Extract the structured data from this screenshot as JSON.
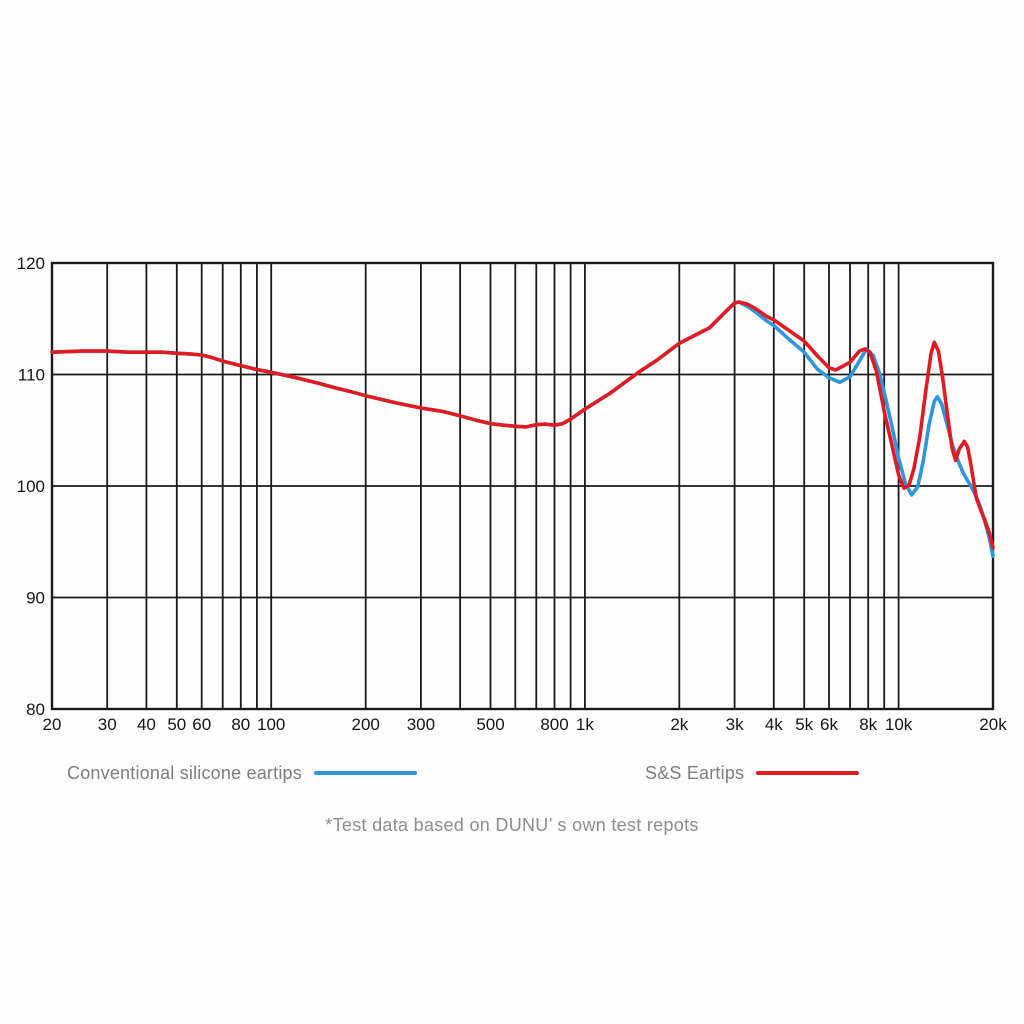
{
  "chart_data": {
    "type": "line",
    "title": "",
    "xlabel": "",
    "ylabel": "",
    "x_scale": "log",
    "xlim": [
      20,
      20000
    ],
    "ylim": [
      80,
      120
    ],
    "grid": true,
    "legend_position": "bottom",
    "y_ticks": [
      80,
      90,
      100,
      110,
      120
    ],
    "x_gridlines": [
      20,
      30,
      40,
      50,
      60,
      70,
      80,
      90,
      100,
      200,
      300,
      400,
      500,
      600,
      700,
      800,
      900,
      1000,
      2000,
      3000,
      4000,
      5000,
      6000,
      7000,
      8000,
      9000,
      10000,
      20000
    ],
    "x_tick_labels": [
      {
        "f": 20,
        "label": "20"
      },
      {
        "f": 30,
        "label": "30"
      },
      {
        "f": 40,
        "label": "40"
      },
      {
        "f": 50,
        "label": "50"
      },
      {
        "f": 60,
        "label": "60"
      },
      {
        "f": 80,
        "label": "80"
      },
      {
        "f": 100,
        "label": "100"
      },
      {
        "f": 200,
        "label": "200"
      },
      {
        "f": 300,
        "label": "300"
      },
      {
        "f": 500,
        "label": "500"
      },
      {
        "f": 800,
        "label": "800"
      },
      {
        "f": 1000,
        "label": "1k"
      },
      {
        "f": 2000,
        "label": "2k"
      },
      {
        "f": 3000,
        "label": "3k"
      },
      {
        "f": 4000,
        "label": "4k"
      },
      {
        "f": 5000,
        "label": "5k"
      },
      {
        "f": 6000,
        "label": "6k"
      },
      {
        "f": 8000,
        "label": "8k"
      },
      {
        "f": 10000,
        "label": "10k"
      },
      {
        "f": 20000,
        "label": "20k"
      }
    ],
    "series": [
      {
        "id": "conventional",
        "name": "Conventional silicone eartips",
        "color": "#2E95DF",
        "points": [
          [
            20,
            112
          ],
          [
            25,
            112.1
          ],
          [
            30,
            112.1
          ],
          [
            35,
            112
          ],
          [
            40,
            112
          ],
          [
            45,
            112
          ],
          [
            50,
            111.9
          ],
          [
            55,
            111.85
          ],
          [
            60,
            111.75
          ],
          [
            65,
            111.5
          ],
          [
            70,
            111.2
          ],
          [
            80,
            110.8
          ],
          [
            90,
            110.45
          ],
          [
            100,
            110.2
          ],
          [
            110,
            109.95
          ],
          [
            120,
            109.7
          ],
          [
            140,
            109.25
          ],
          [
            160,
            108.8
          ],
          [
            180,
            108.45
          ],
          [
            200,
            108.1
          ],
          [
            250,
            107.45
          ],
          [
            300,
            107
          ],
          [
            350,
            106.7
          ],
          [
            400,
            106.3
          ],
          [
            450,
            105.9
          ],
          [
            500,
            105.6
          ],
          [
            550,
            105.45
          ],
          [
            600,
            105.35
          ],
          [
            650,
            105.3
          ],
          [
            700,
            105.5
          ],
          [
            750,
            105.55
          ],
          [
            800,
            105.45
          ],
          [
            850,
            105.6
          ],
          [
            900,
            106
          ],
          [
            1000,
            106.9
          ],
          [
            1200,
            108.3
          ],
          [
            1500,
            110.3
          ],
          [
            1700,
            111.3
          ],
          [
            2000,
            112.8
          ],
          [
            2200,
            113.4
          ],
          [
            2500,
            114.2
          ],
          [
            2800,
            115.6
          ],
          [
            3000,
            116.4
          ],
          [
            3100,
            116.5
          ],
          [
            3300,
            116.1
          ],
          [
            3500,
            115.6
          ],
          [
            3800,
            114.8
          ],
          [
            4000,
            114.4
          ],
          [
            4500,
            113.1
          ],
          [
            5000,
            112
          ],
          [
            5500,
            110.5
          ],
          [
            6000,
            109.7
          ],
          [
            6500,
            109.3
          ],
          [
            7000,
            109.8
          ],
          [
            7500,
            111.2
          ],
          [
            7900,
            112.3
          ],
          [
            8300,
            111.7
          ],
          [
            8700,
            110.1
          ],
          [
            9000,
            108.4
          ],
          [
            9500,
            105.5
          ],
          [
            10000,
            102.5
          ],
          [
            10500,
            100.3
          ],
          [
            11000,
            99.2
          ],
          [
            11500,
            99.9
          ],
          [
            12000,
            102.3
          ],
          [
            12500,
            105.5
          ],
          [
            13000,
            107.6
          ],
          [
            13300,
            108
          ],
          [
            13700,
            107.4
          ],
          [
            14200,
            105.8
          ],
          [
            14800,
            103.8
          ],
          [
            15500,
            102.2
          ],
          [
            16000,
            101.3
          ],
          [
            16500,
            100.6
          ],
          [
            17000,
            100
          ],
          [
            17700,
            99
          ],
          [
            18300,
            98
          ],
          [
            18800,
            96.9
          ],
          [
            19400,
            95.5
          ],
          [
            20000,
            93.7
          ]
        ]
      },
      {
        "id": "ss",
        "name": "S&S Eartips",
        "color": "#E11B22",
        "points": [
          [
            20,
            112
          ],
          [
            25,
            112.1
          ],
          [
            30,
            112.1
          ],
          [
            35,
            112
          ],
          [
            40,
            112
          ],
          [
            45,
            112
          ],
          [
            50,
            111.9
          ],
          [
            55,
            111.85
          ],
          [
            60,
            111.75
          ],
          [
            65,
            111.5
          ],
          [
            70,
            111.2
          ],
          [
            80,
            110.8
          ],
          [
            90,
            110.45
          ],
          [
            100,
            110.2
          ],
          [
            110,
            109.95
          ],
          [
            120,
            109.7
          ],
          [
            140,
            109.25
          ],
          [
            160,
            108.8
          ],
          [
            180,
            108.45
          ],
          [
            200,
            108.1
          ],
          [
            250,
            107.45
          ],
          [
            300,
            107
          ],
          [
            350,
            106.7
          ],
          [
            400,
            106.3
          ],
          [
            450,
            105.9
          ],
          [
            500,
            105.6
          ],
          [
            550,
            105.45
          ],
          [
            600,
            105.35
          ],
          [
            650,
            105.3
          ],
          [
            700,
            105.5
          ],
          [
            750,
            105.55
          ],
          [
            800,
            105.45
          ],
          [
            850,
            105.6
          ],
          [
            900,
            106
          ],
          [
            1000,
            106.9
          ],
          [
            1200,
            108.3
          ],
          [
            1500,
            110.3
          ],
          [
            1700,
            111.3
          ],
          [
            2000,
            112.8
          ],
          [
            2200,
            113.4
          ],
          [
            2500,
            114.2
          ],
          [
            2800,
            115.6
          ],
          [
            3000,
            116.4
          ],
          [
            3100,
            116.5
          ],
          [
            3300,
            116.3
          ],
          [
            3500,
            115.9
          ],
          [
            3800,
            115.2
          ],
          [
            4000,
            114.9
          ],
          [
            4500,
            113.9
          ],
          [
            5000,
            113
          ],
          [
            5500,
            111.7
          ],
          [
            6000,
            110.6
          ],
          [
            6300,
            110.4
          ],
          [
            6700,
            110.8
          ],
          [
            7000,
            111.1
          ],
          [
            7500,
            112.1
          ],
          [
            7800,
            112.3
          ],
          [
            8100,
            112
          ],
          [
            8500,
            110.3
          ],
          [
            9000,
            106.7
          ],
          [
            9500,
            103.8
          ],
          [
            10000,
            101
          ],
          [
            10400,
            99.8
          ],
          [
            10800,
            100.1
          ],
          [
            11200,
            101.6
          ],
          [
            11700,
            104.5
          ],
          [
            12200,
            108.5
          ],
          [
            12700,
            111.9
          ],
          [
            13000,
            112.9
          ],
          [
            13400,
            112.1
          ],
          [
            13800,
            109.8
          ],
          [
            14300,
            106.5
          ],
          [
            14800,
            103.4
          ],
          [
            15200,
            102.3
          ],
          [
            15600,
            103.3
          ],
          [
            16200,
            104
          ],
          [
            16600,
            103.5
          ],
          [
            17000,
            101.9
          ],
          [
            17700,
            98.9
          ],
          [
            18300,
            97.8
          ],
          [
            18800,
            97
          ],
          [
            19400,
            95.9
          ],
          [
            20000,
            94.5
          ]
        ]
      }
    ]
  },
  "legend": {
    "items": [
      {
        "label": "Conventional silicone eartips",
        "color": "#2E95DF"
      },
      {
        "label": "S&S Eartips",
        "color": "#E11B22"
      }
    ]
  },
  "footnote": "*Test data based on DUNU’ s own test repots",
  "colors": {
    "grid": "#1a1a1a",
    "tick_text": "#151515",
    "legend_text": "#7d7d7d",
    "footnote_text": "#8c8c8c",
    "background": "#fefefe",
    "accent_blue": "#2E95DF",
    "accent_red": "#E11B22"
  }
}
